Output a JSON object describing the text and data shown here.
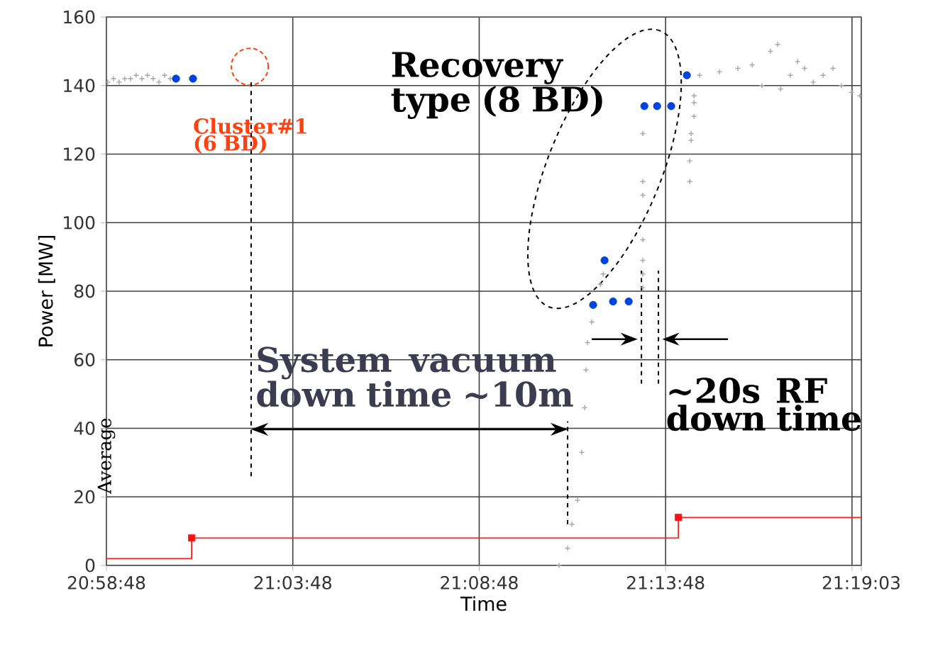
{
  "chart_data": {
    "type": "scatter",
    "xlabel": "Time",
    "ylabel": "Power [MW]",
    "xlim": [
      20.98,
      21.3175
    ],
    "ylim": [
      0,
      160
    ],
    "xticks": [
      {
        "value": 20.98,
        "label": "20:58:48"
      },
      {
        "value": 21.063333,
        "label": "21:03:48"
      },
      {
        "value": 21.146667,
        "label": "21:08:48"
      },
      {
        "value": 21.23,
        "label": "21:13:48"
      },
      {
        "value": 21.313333,
        "label": null
      },
      {
        "value": 21.3175,
        "label": "21:19:03"
      }
    ],
    "yticks": [
      0,
      20,
      40,
      60,
      80,
      100,
      120,
      140,
      160
    ],
    "grid": true,
    "series": [
      {
        "marker": "cross",
        "color": "#a6a6a6",
        "x": [
          20.9806,
          20.9832,
          20.9857,
          20.9882,
          20.9908,
          20.9933,
          20.9959,
          20.9984,
          21.0009,
          21.0035,
          21.006,
          21.0085,
          21.1824,
          21.1862,
          21.1881,
          21.1906,
          21.1925,
          21.1938,
          21.1944,
          21.1951,
          21.197,
          21.2008,
          21.2021,
          21.2198,
          21.2198,
          21.2198,
          21.2198,
          21.2198,
          21.2198,
          21.2198,
          21.2408,
          21.2408,
          21.2414,
          21.2414,
          21.2427,
          21.2427,
          21.2427,
          21.2452,
          21.2541,
          21.2623,
          21.2687,
          21.2731,
          21.2769,
          21.2801,
          21.2814,
          21.2858,
          21.289,
          21.2921,
          21.296,
          21.3004,
          21.3048,
          21.3086,
          21.3131,
          21.3169
        ],
        "values": [
          141,
          142,
          141,
          142,
          142,
          143,
          142,
          143,
          142,
          141,
          143,
          142,
          0,
          5,
          12,
          19,
          33,
          46,
          57,
          65,
          71,
          82,
          85,
          81,
          85,
          89,
          95,
          108,
          112,
          126,
          112,
          118,
          124,
          126,
          131,
          135,
          137,
          143,
          144,
          145,
          146,
          140,
          150,
          152,
          139,
          143,
          147,
          145,
          141,
          143,
          145,
          140,
          138,
          137
        ]
      },
      {
        "type": "scatter",
        "marker": "circle",
        "color": "#0044dd",
        "x": [
          21.0111,
          21.0187,
          21.1976,
          21.2027,
          21.2065,
          21.2135,
          21.2205,
          21.2262,
          21.2325,
          21.2395
        ],
        "values": [
          142,
          142,
          76,
          89,
          77,
          77,
          134,
          134,
          134,
          143
        ]
      },
      {
        "type": "step",
        "marker": "none",
        "color": "#ff2020",
        "x": [
          20.98,
          21.0181,
          21.2357,
          21.3175
        ],
        "values": [
          2,
          8,
          14,
          14
        ]
      },
      {
        "type": "scatter",
        "marker": "square",
        "color": "#ff1010",
        "x": [
          21.0181,
          21.2357
        ],
        "values": [
          8,
          14
        ]
      }
    ],
    "ref_lines": [
      {
        "axis": "x",
        "value": 21.0447,
        "line_style": "dashed",
        "color": "#000000"
      },
      {
        "axis": "x",
        "value": 21.1862,
        "line_style": "dashed",
        "color": "#000000"
      },
      {
        "axis": "x",
        "value": 21.2192,
        "line_style": "dashed",
        "color": "#000000"
      },
      {
        "axis": "x",
        "value": 21.2268,
        "line_style": "dashed",
        "color": "#000000"
      }
    ],
    "annotations": [
      {
        "text": "Cluster#1 (6 BD)",
        "x": 21.0441,
        "y": 145.5
      },
      "Recovery type (8 BD)",
      "System vacuum down time ~10m",
      "~20s RF down time",
      "Average"
    ]
  }
}
